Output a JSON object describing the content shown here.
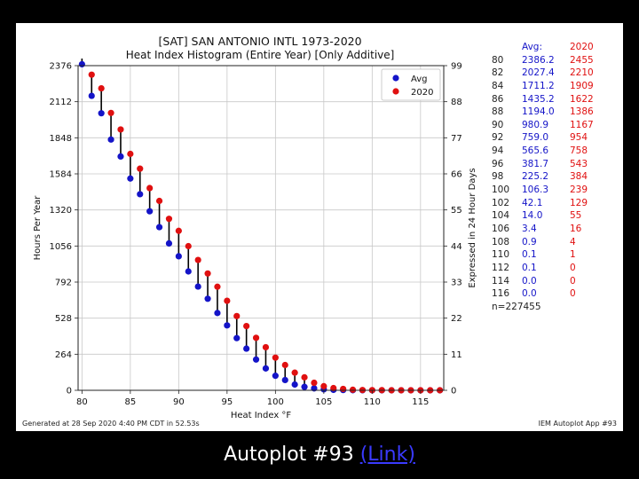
{
  "caption": {
    "text": "Autoplot #93 ",
    "link": "(Link)"
  },
  "footer": {
    "generated": "Generated at 28 Sep 2020 4:40 PM CDT in 52.53s",
    "app": "IEM Autoplot App #93"
  },
  "stats": {
    "header_avg": "Avg:",
    "header_year": "2020",
    "rows": [
      [
        "80",
        "2386.2",
        "2455"
      ],
      [
        "82",
        "2027.4",
        "2210"
      ],
      [
        "84",
        "1711.2",
        "1909"
      ],
      [
        "86",
        "1435.2",
        "1622"
      ],
      [
        "88",
        "1194.0",
        "1386"
      ],
      [
        "90",
        "980.9",
        "1167"
      ],
      [
        "92",
        "759.0",
        "954"
      ],
      [
        "94",
        "565.6",
        "758"
      ],
      [
        "96",
        "381.7",
        "543"
      ],
      [
        "98",
        "225.2",
        "384"
      ],
      [
        "100",
        "106.3",
        "239"
      ],
      [
        "102",
        "42.1",
        "129"
      ],
      [
        "104",
        "14.0",
        "55"
      ],
      [
        "106",
        "3.4",
        "16"
      ],
      [
        "108",
        "0.9",
        "4"
      ],
      [
        "110",
        "0.1",
        "1"
      ],
      [
        "112",
        "0.1",
        "0"
      ],
      [
        "114",
        "0.0",
        "0"
      ],
      [
        "116",
        "0.0",
        "0"
      ]
    ],
    "n": "n=227455"
  },
  "colors": {
    "avg": "#1414c8",
    "year": "#e01010"
  },
  "chart_data": {
    "type": "scatter",
    "title": "[SAT] SAN ANTONIO INTL 1973-2020",
    "subtitle": "Heat Index Histogram (Entire Year) [Only Additive]",
    "xlabel": "Heat Index °F",
    "ylabel": "Hours Per Year",
    "y2label": "Expressed in 24 Hour Days",
    "xlim": [
      79.6,
      117.4
    ],
    "ylim": [
      0,
      2376
    ],
    "y2lim": [
      0,
      99
    ],
    "xticks": [
      "80",
      "85",
      "90",
      "95",
      "100",
      "105",
      "110",
      "115"
    ],
    "yticks": [
      "0",
      "264",
      "528",
      "792",
      "1056",
      "1320",
      "1584",
      "1848",
      "2112",
      "2376"
    ],
    "y2ticks": [
      "0",
      "11",
      "22",
      "33",
      "44",
      "55",
      "66",
      "77",
      "88",
      "99"
    ],
    "legend": {
      "placement": "top-right",
      "entries": [
        "Avg",
        "2020"
      ]
    },
    "x": [
      80,
      81,
      82,
      83,
      84,
      85,
      86,
      87,
      88,
      89,
      90,
      91,
      92,
      93,
      94,
      95,
      96,
      97,
      98,
      99,
      100,
      101,
      102,
      103,
      104,
      105,
      106,
      107,
      108,
      109,
      110,
      111,
      112,
      113,
      114,
      115,
      116,
      117
    ],
    "series": [
      {
        "name": "Avg",
        "values": [
          2386.2,
          2155,
          2027.4,
          1835,
          1711.2,
          1550,
          1435.2,
          1310,
          1194.0,
          1075,
          980.9,
          870,
          759.0,
          670,
          565.6,
          475,
          381.7,
          305,
          225.2,
          160,
          106.3,
          75,
          42.1,
          25,
          14.0,
          7,
          3.4,
          2,
          0.9,
          0.5,
          0.1,
          0.1,
          0.1,
          0,
          0,
          0,
          0,
          0
        ]
      },
      {
        "name": "2020",
        "values": [
          2455,
          2310,
          2210,
          2030,
          1909,
          1730,
          1622,
          1480,
          1386,
          1255,
          1167,
          1055,
          954,
          855,
          758,
          655,
          543,
          470,
          384,
          315,
          239,
          185,
          129,
          95,
          55,
          30,
          16,
          10,
          4,
          2,
          1,
          1,
          0,
          0,
          0,
          0,
          0,
          0
        ]
      }
    ]
  }
}
